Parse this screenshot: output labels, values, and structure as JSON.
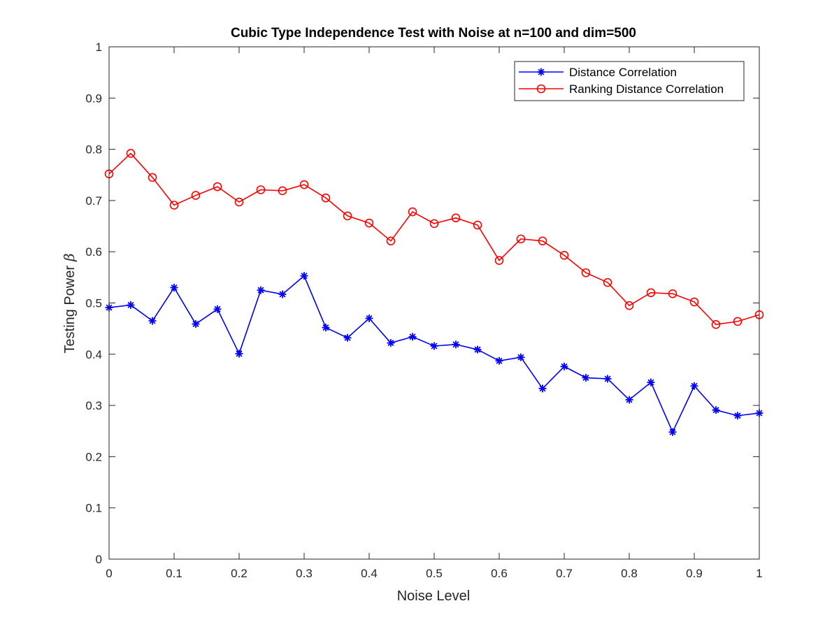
{
  "chart_data": {
    "type": "line",
    "title": "Cubic Type Independence Test with Noise at n=100 and dim=500",
    "xlabel": "Noise Level",
    "ylabel": "Testing Power",
    "ylabel_symbol": "β",
    "xlim": [
      0,
      1
    ],
    "ylim": [
      0,
      1
    ],
    "xticks": [
      "0",
      "0.1",
      "0.2",
      "0.3",
      "0.4",
      "0.5",
      "0.6",
      "0.7",
      "0.8",
      "0.9",
      "1"
    ],
    "yticks": [
      "0",
      "0.1",
      "0.2",
      "0.3",
      "0.4",
      "0.5",
      "0.6",
      "0.7",
      "0.8",
      "0.9",
      "1"
    ],
    "grid": false,
    "legend": "top-right",
    "x": [
      0,
      0.0333,
      0.0667,
      0.1,
      0.1333,
      0.1667,
      0.2,
      0.2333,
      0.2667,
      0.3,
      0.3333,
      0.3667,
      0.4,
      0.4333,
      0.4667,
      0.5,
      0.5333,
      0.5667,
      0.6,
      0.6333,
      0.6667,
      0.7,
      0.7333,
      0.7667,
      0.8,
      0.8333,
      0.8667,
      0.9,
      0.9333,
      0.9667,
      1.0
    ],
    "series": [
      {
        "name": "Distance Correlation",
        "color": "#0000ff",
        "marker": "asterisk",
        "values": [
          0.491,
          0.496,
          0.465,
          0.53,
          0.459,
          0.488,
          0.401,
          0.525,
          0.517,
          0.553,
          0.452,
          0.432,
          0.47,
          0.422,
          0.434,
          0.416,
          0.419,
          0.409,
          0.387,
          0.394,
          0.333,
          0.376,
          0.354,
          0.352,
          0.311,
          0.345,
          0.248,
          0.338,
          0.291,
          0.28,
          0.285
        ]
      },
      {
        "name": "Ranking Distance Correlation",
        "color": "#ff0000",
        "marker": "circle",
        "values": [
          0.752,
          0.792,
          0.745,
          0.691,
          0.71,
          0.727,
          0.697,
          0.721,
          0.719,
          0.731,
          0.705,
          0.67,
          0.656,
          0.621,
          0.678,
          0.655,
          0.666,
          0.652,
          0.583,
          0.625,
          0.621,
          0.593,
          0.559,
          0.54,
          0.495,
          0.52,
          0.518,
          0.502,
          0.458,
          0.464,
          0.477
        ]
      }
    ]
  }
}
